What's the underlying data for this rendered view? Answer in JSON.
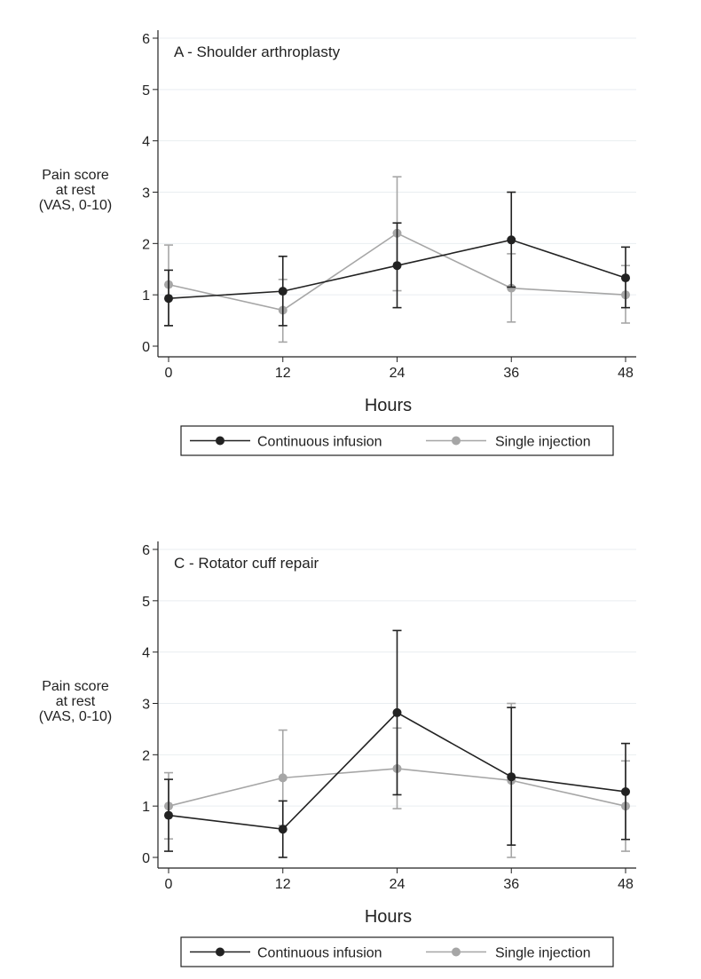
{
  "chart_data": [
    {
      "type": "line",
      "title": "A - Shoulder arthroplasty",
      "xlabel": "Hours",
      "ylabel": [
        "Pain score",
        "at rest",
        "(VAS, 0-10)"
      ],
      "xlim": [
        0,
        48
      ],
      "ylim": [
        0,
        6
      ],
      "x_ticks": [
        "0",
        "12",
        "24",
        "36",
        "48"
      ],
      "y_ticks": [
        "0",
        "1",
        "2",
        "3",
        "4",
        "5",
        "6"
      ],
      "x": [
        0,
        12,
        24,
        36,
        48
      ],
      "grid": true,
      "legend_position": "bottom",
      "series": [
        {
          "name": "Continuous infusion",
          "color": "#222222",
          "values": [
            0.93,
            1.07,
            1.57,
            2.07,
            1.33
          ],
          "err_low": [
            0.4,
            0.4,
            0.75,
            1.15,
            0.75
          ],
          "err_high": [
            1.48,
            1.75,
            2.4,
            3.0,
            1.93
          ]
        },
        {
          "name": "Single injection",
          "color": "#a6a6a6",
          "values": [
            1.2,
            0.7,
            2.2,
            1.13,
            1.0
          ],
          "err_low": [
            0.4,
            0.08,
            1.08,
            0.47,
            0.45
          ],
          "err_high": [
            1.97,
            1.3,
            3.3,
            1.8,
            1.57
          ]
        }
      ]
    },
    {
      "type": "line",
      "title": "C - Rotator cuff repair",
      "xlabel": "Hours",
      "ylabel": [
        "Pain score",
        "at rest",
        "(VAS, 0-10)"
      ],
      "xlim": [
        0,
        48
      ],
      "ylim": [
        0,
        6
      ],
      "x_ticks": [
        "0",
        "12",
        "24",
        "36",
        "48"
      ],
      "y_ticks": [
        "0",
        "1",
        "2",
        "3",
        "4",
        "5",
        "6"
      ],
      "x": [
        0,
        12,
        24,
        36,
        48
      ],
      "grid": true,
      "legend_position": "bottom",
      "series": [
        {
          "name": "Continuous infusion",
          "color": "#222222",
          "values": [
            0.82,
            0.55,
            2.82,
            1.57,
            1.28
          ],
          "err_low": [
            0.12,
            0.0,
            1.22,
            0.24,
            0.35
          ],
          "err_high": [
            1.52,
            1.1,
            4.42,
            2.92,
            2.22
          ]
        },
        {
          "name": "Single injection",
          "color": "#a6a6a6",
          "values": [
            1.0,
            1.55,
            1.73,
            1.5,
            1.0
          ],
          "err_low": [
            0.36,
            0.62,
            0.95,
            0.0,
            0.12
          ],
          "err_high": [
            1.65,
            2.48,
            2.52,
            3.0,
            1.88
          ]
        }
      ]
    }
  ]
}
